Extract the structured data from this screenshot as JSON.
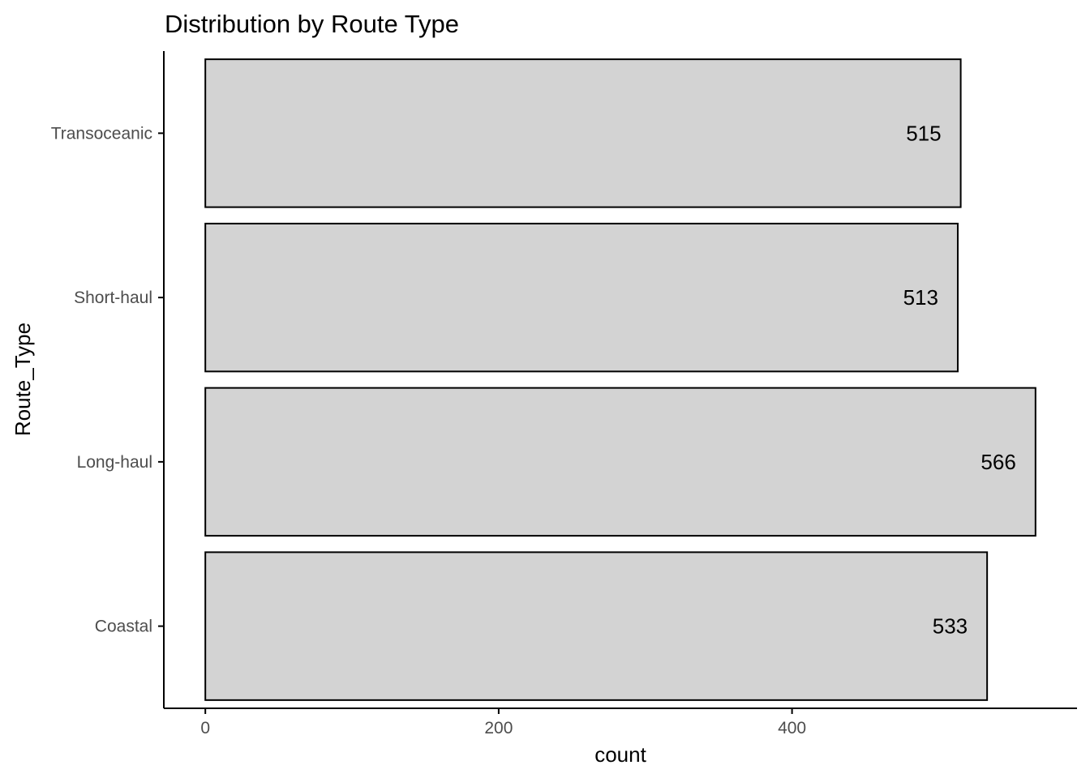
{
  "chart_data": {
    "type": "bar",
    "orientation": "horizontal",
    "title": "Distribution by Route Type",
    "xlabel": "count",
    "ylabel": "Route_Type",
    "categories": [
      "Coastal",
      "Long-haul",
      "Short-haul",
      "Transoceanic"
    ],
    "values": [
      533,
      566,
      513,
      515
    ],
    "data_labels": [
      "533",
      "566",
      "513",
      "515"
    ],
    "x_ticks": [
      0,
      200,
      400
    ],
    "x_tick_labels": [
      "0",
      "200",
      "400"
    ],
    "xlim": [
      -28.3,
      594.3
    ],
    "grid": false,
    "legend": "none",
    "colors": {
      "bar_fill": "#d3d3d3",
      "bar_stroke": "#000000",
      "axis": "#000000",
      "tick_text": "#4d4d4d",
      "background": "#ffffff"
    }
  }
}
